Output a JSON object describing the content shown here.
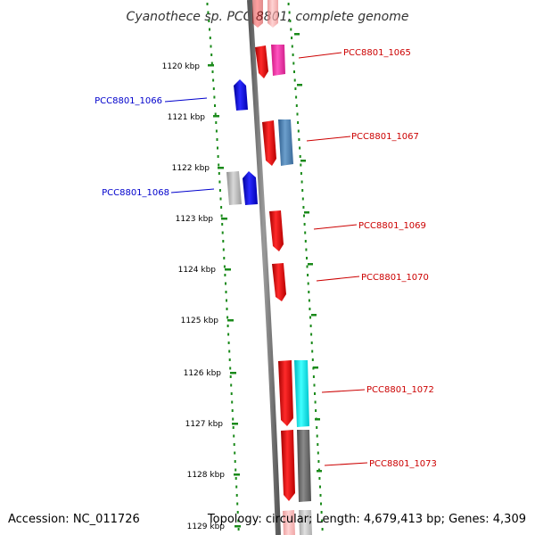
{
  "title": "Cyanothece sp. PCC 8801, complete genome",
  "footer": {
    "accession": "Accession: NC_011726",
    "summary": "Topology: circular; Length: 4,679,413 bp; Genes: 4,309"
  },
  "kbp_ticks": [
    "1120 kbp",
    "1121 kbp",
    "1122 kbp",
    "1123 kbp",
    "1124 kbp",
    "1125 kbp",
    "1126 kbp",
    "1127 kbp",
    "1128 kbp",
    "1129 kbp"
  ],
  "gene_labels": [
    {
      "text": "PCC8801_1065",
      "side": "right",
      "color": "#cc0000"
    },
    {
      "text": "PCC8801_1066",
      "side": "left",
      "color": "#0000cc"
    },
    {
      "text": "PCC8801_1067",
      "side": "right",
      "color": "#cc0000"
    },
    {
      "text": "PCC8801_1068",
      "side": "left",
      "color": "#0000cc"
    },
    {
      "text": "PCC8801_1069",
      "side": "right",
      "color": "#cc0000"
    },
    {
      "text": "PCC8801_1070",
      "side": "right",
      "color": "#cc0000"
    },
    {
      "text": "PCC8801_1072",
      "side": "right",
      "color": "#cc0000"
    },
    {
      "text": "PCC8801_1073",
      "side": "right",
      "color": "#cc0000"
    }
  ],
  "colors": {
    "backbone": "#777777",
    "tick_dots": "#1a8a1a",
    "forward_gene": "#ee0000",
    "reverse_gene": "#0000ee",
    "magenta_feature": "#ff2fa8",
    "steelblue_feature": "#4a7fb0",
    "cyan_feature": "#00e5ee",
    "grey_feature": "#b0b0b0",
    "darkgrey_feature": "#6a6a6a"
  }
}
